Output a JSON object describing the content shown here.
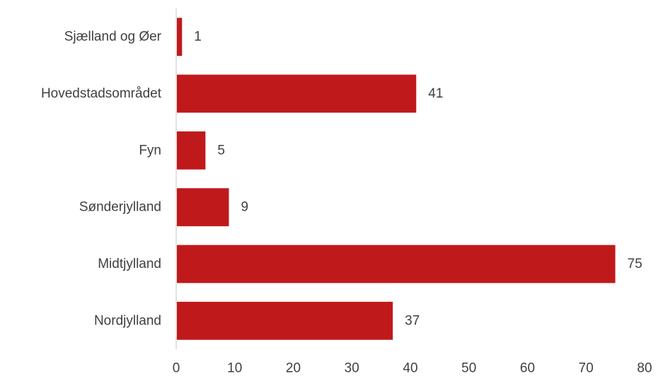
{
  "chart_data": {
    "type": "bar",
    "orientation": "horizontal",
    "title": "",
    "xlabel": "",
    "ylabel": "",
    "categories": [
      "Sjælland og Øer",
      "Hovedstadsområdet",
      "Fyn",
      "Sønderjylland",
      "Midtjylland",
      "Nordjylland"
    ],
    "values": [
      1,
      41,
      5,
      9,
      75,
      37
    ],
    "data_labels": [
      "1",
      "41",
      "5",
      "9",
      "75",
      "37"
    ],
    "xlim": [
      0,
      80
    ],
    "x_ticks": [
      0,
      10,
      20,
      30,
      40,
      50,
      60,
      70,
      80
    ],
    "x_tick_labels": [
      "0",
      "10",
      "20",
      "30",
      "40",
      "50",
      "60",
      "70",
      "80"
    ],
    "grid": false,
    "legend": "none",
    "bar_color": "#C0191B",
    "axis_color": "#D9D9D9",
    "text_color": "#404040"
  }
}
